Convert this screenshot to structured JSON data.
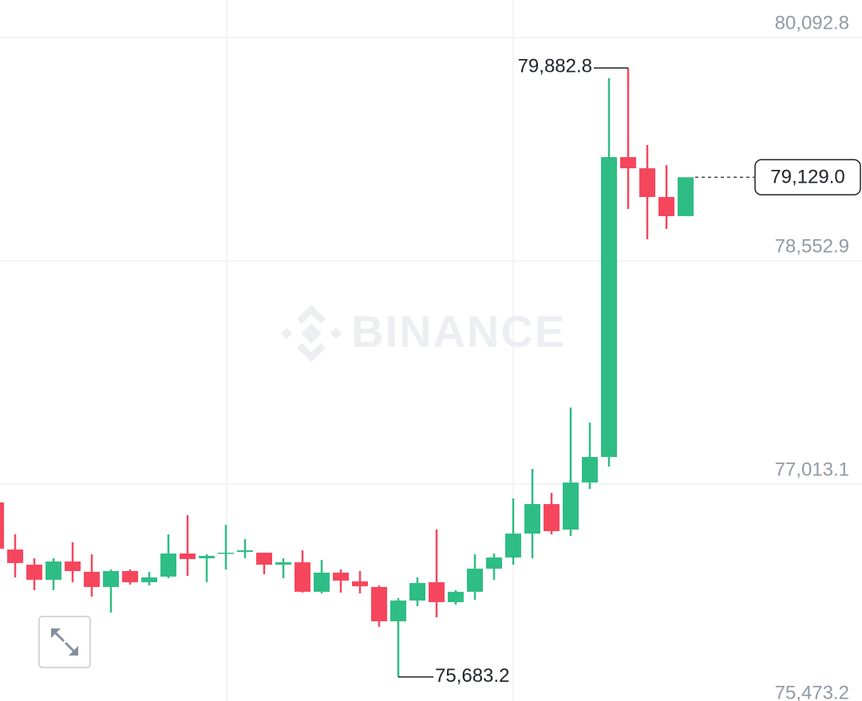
{
  "chart_data": {
    "type": "candlestick",
    "watermark": "BINANCE",
    "up_color": "#2ebd85",
    "down_color": "#f6465d",
    "ylim": [
      75517.2,
      80351.3
    ],
    "yticks": [
      {
        "value": 80092.8,
        "label": "80,092.8"
      },
      {
        "value": 78552.9,
        "label": "78,552.9"
      },
      {
        "value": 77013.1,
        "label": "77,013.1"
      },
      {
        "value": 75473.2,
        "label": "75,473.2"
      }
    ],
    "grid": true,
    "open": [
      76886.3,
      76561.8,
      76457.3,
      76352.8,
      76479.3,
      76407.8,
      76303.3,
      76413.3,
      76336.3,
      76374.8,
      76534.3,
      76501.3,
      76534.3,
      76545.3,
      76539.8,
      76457.3,
      76473.8,
      76270.3,
      76402.3,
      76341.8,
      76303.3,
      76066.8,
      76209.8,
      76336.3,
      76198.8,
      76270.3,
      76429.8,
      76506.8,
      76671.8,
      76875.3,
      76699.3,
      77023.8,
      77199.8,
      79267.8,
      79190.8,
      78992.8,
      78860.8
    ],
    "high": [
      76897.3,
      76666.3,
      76501.3,
      76501.3,
      76611.3,
      76528.8,
      76424.3,
      76424.3,
      76407.8,
      76666.3,
      76798.3,
      76528.8,
      76732.3,
      76633.3,
      76539.8,
      76501.3,
      76556.3,
      76490.3,
      76424.3,
      76413.3,
      76314.3,
      76226.3,
      76369.3,
      76699.3,
      76281.3,
      76528.8,
      76534.3,
      76913.8,
      77117.3,
      76952.3,
      77540.8,
      77436.3,
      79812.3,
      79882.8,
      79350.3,
      79212.8,
      79129.0
    ],
    "low": [
      76556.3,
      76369.3,
      76281.3,
      76281.3,
      76336.3,
      76237.3,
      76127.3,
      76319.8,
      76314.3,
      76363.8,
      76380.3,
      76336.3,
      76424.3,
      76501.3,
      76391.3,
      76363.8,
      76264.8,
      76259.3,
      76264.8,
      76259.3,
      76028.3,
      75683.2,
      76171.3,
      76094.3,
      76182.3,
      76215.3,
      76352.8,
      76457.3,
      76501.3,
      76666.3,
      76655.3,
      76979.8,
      77133.8,
      78910.3,
      78701.3,
      78772.8,
      78860.8
    ],
    "close": [
      76567.3,
      76468.3,
      76352.8,
      76479.3,
      76413.3,
      76303.3,
      76413.3,
      76336.3,
      76369.3,
      76534.3,
      76495.8,
      76517.8,
      76539.8,
      76556.3,
      76457.3,
      76473.8,
      76270.3,
      76402.3,
      76347.3,
      76308.8,
      76066.8,
      76209.8,
      76330.8,
      76198.8,
      76270.3,
      76429.8,
      76506.8,
      76671.8,
      76875.3,
      76688.3,
      77023.8,
      77199.8,
      79267.8,
      79190.8,
      78992.8,
      78860.8,
      79129.0
    ],
    "high_marker": {
      "value": 79882.8,
      "label": "79,882.8"
    },
    "low_marker": {
      "value": 75683.2,
      "label": "75,683.2"
    },
    "last_price": {
      "value": 79129.0,
      "label": "79,129.0"
    }
  }
}
